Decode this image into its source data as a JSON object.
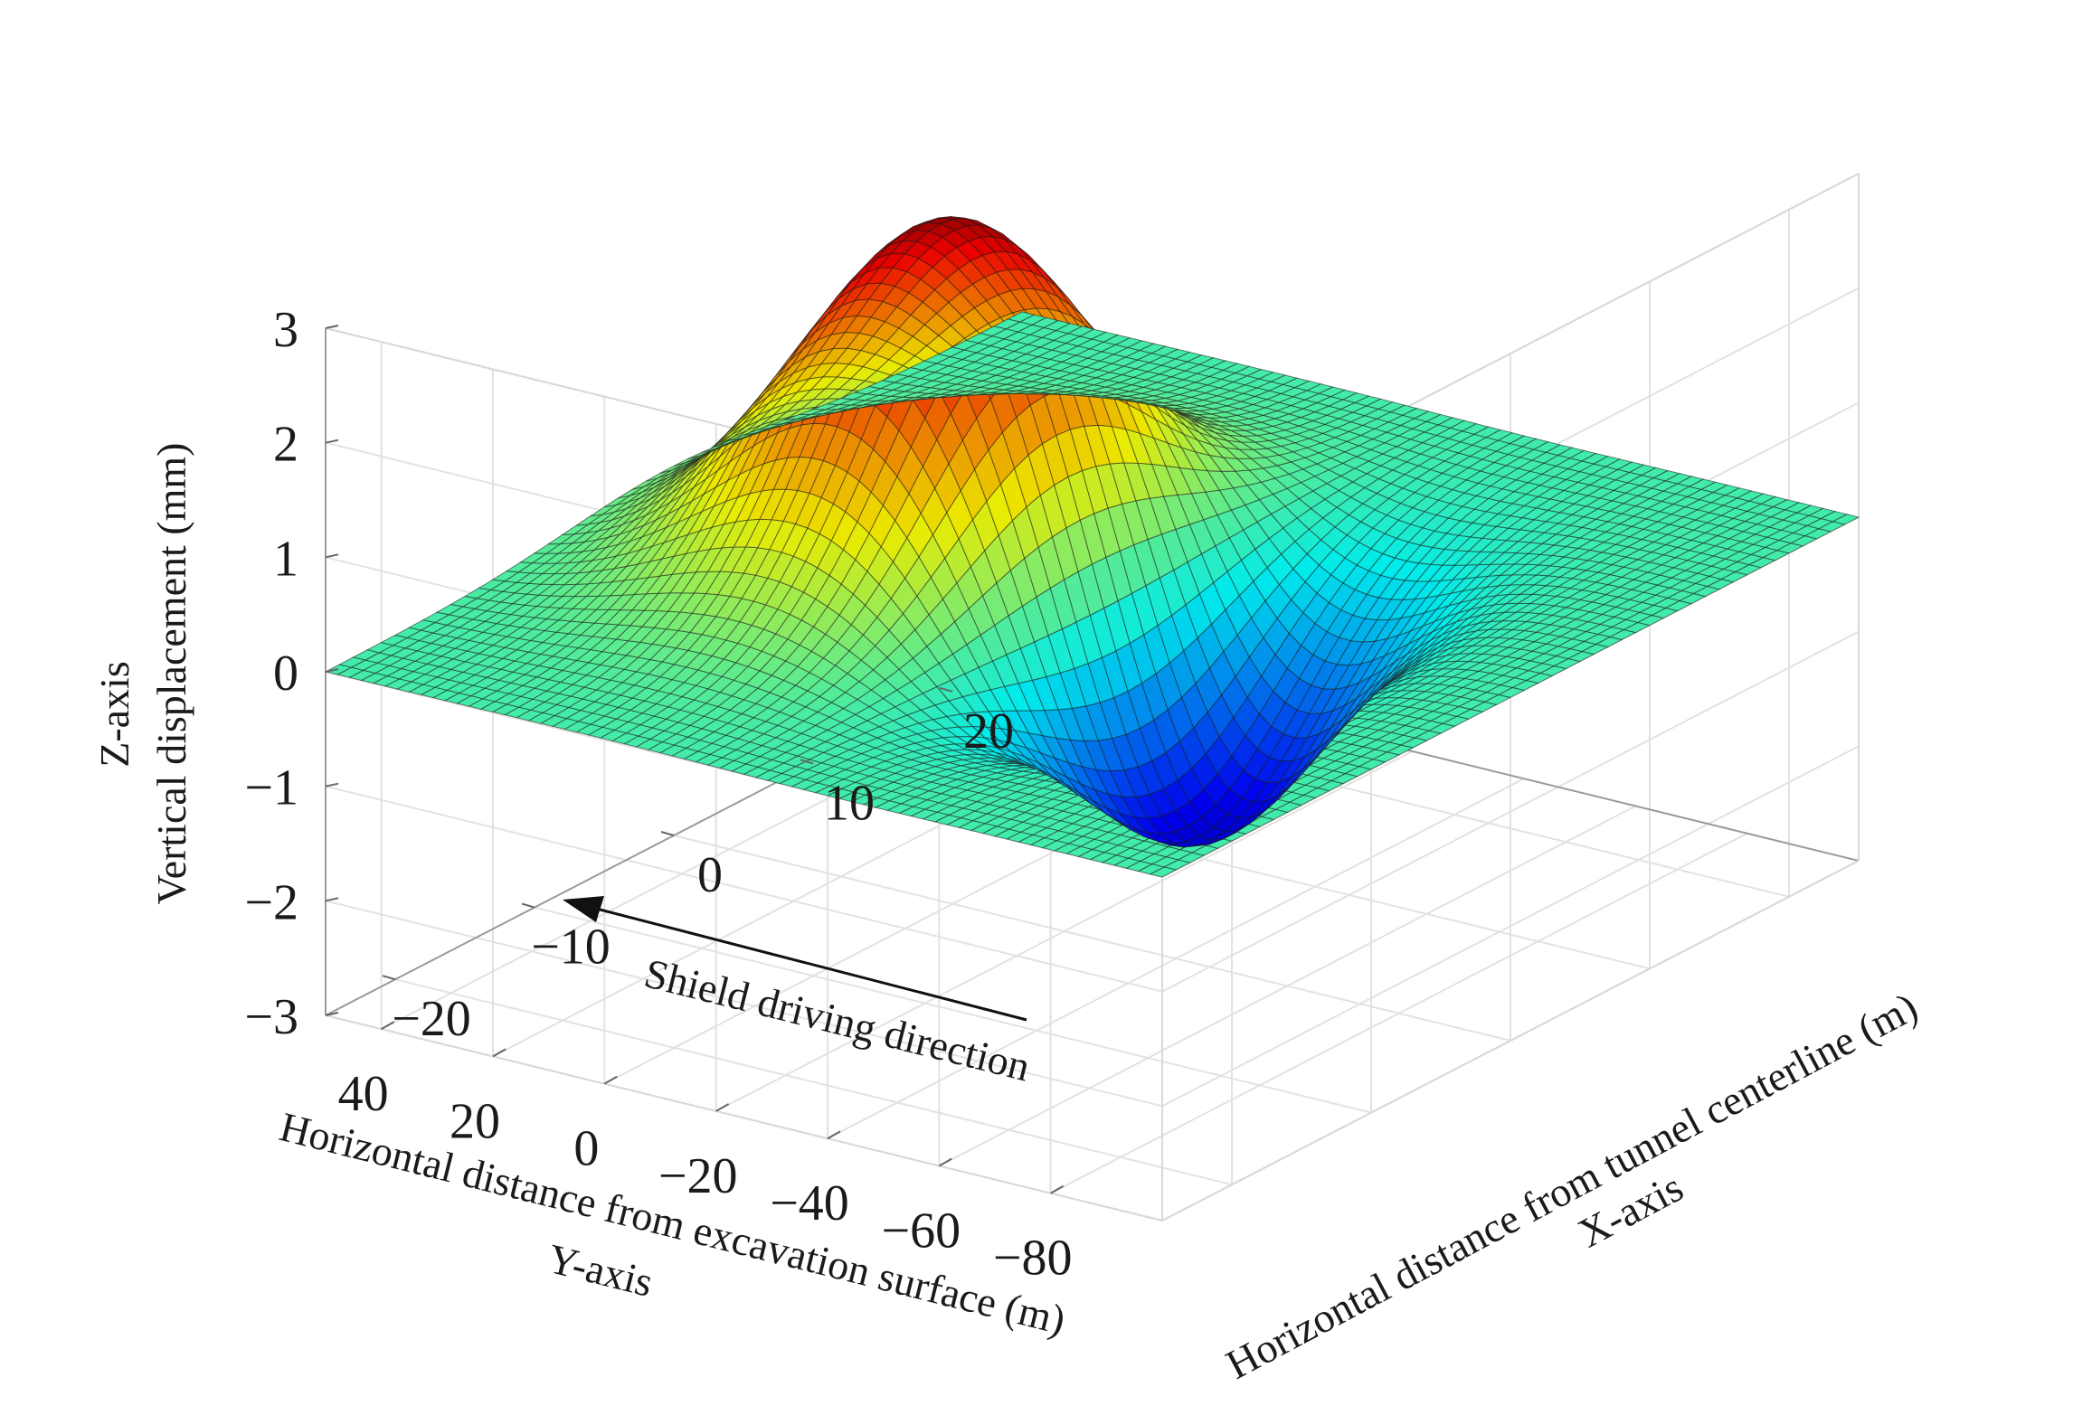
{
  "chart_data": {
    "type": "surface",
    "title": "",
    "x_axis": {
      "name": "X-axis",
      "label": "Horizontal distance from tunnel centerline (m)",
      "range": [
        -25,
        25
      ],
      "ticks": [
        "−20",
        "−10",
        "0",
        "10",
        "20"
      ],
      "tick_values": [
        -20,
        -10,
        0,
        10,
        20
      ]
    },
    "y_axis": {
      "name": "Y-axis",
      "label": "Horizontal distance from excavation surface (m)",
      "range": [
        -100,
        50
      ],
      "ticks": [
        "40",
        "20",
        "0",
        "−20",
        "−40",
        "−60",
        "−80"
      ],
      "tick_values": [
        40,
        20,
        0,
        -20,
        -40,
        -60,
        -80
      ]
    },
    "z_axis": {
      "name": "Z-axis",
      "label": "Vertical displacement (mm)",
      "range": [
        -3,
        3
      ],
      "ticks": [
        "−3",
        "−2",
        "−1",
        "0",
        "1",
        "2",
        "3"
      ],
      "tick_values": [
        -3,
        -2,
        -1,
        0,
        1,
        2,
        3
      ]
    },
    "annotation": {
      "text": "Shield driving direction",
      "arrow_toward": "positive Y"
    },
    "peak": {
      "x": 0,
      "y": 0,
      "z": 3.0
    },
    "trough": {
      "x": 0,
      "y": -42,
      "z": -2.3
    },
    "colormap": "jet",
    "grid": true,
    "mesh_edges": true
  }
}
